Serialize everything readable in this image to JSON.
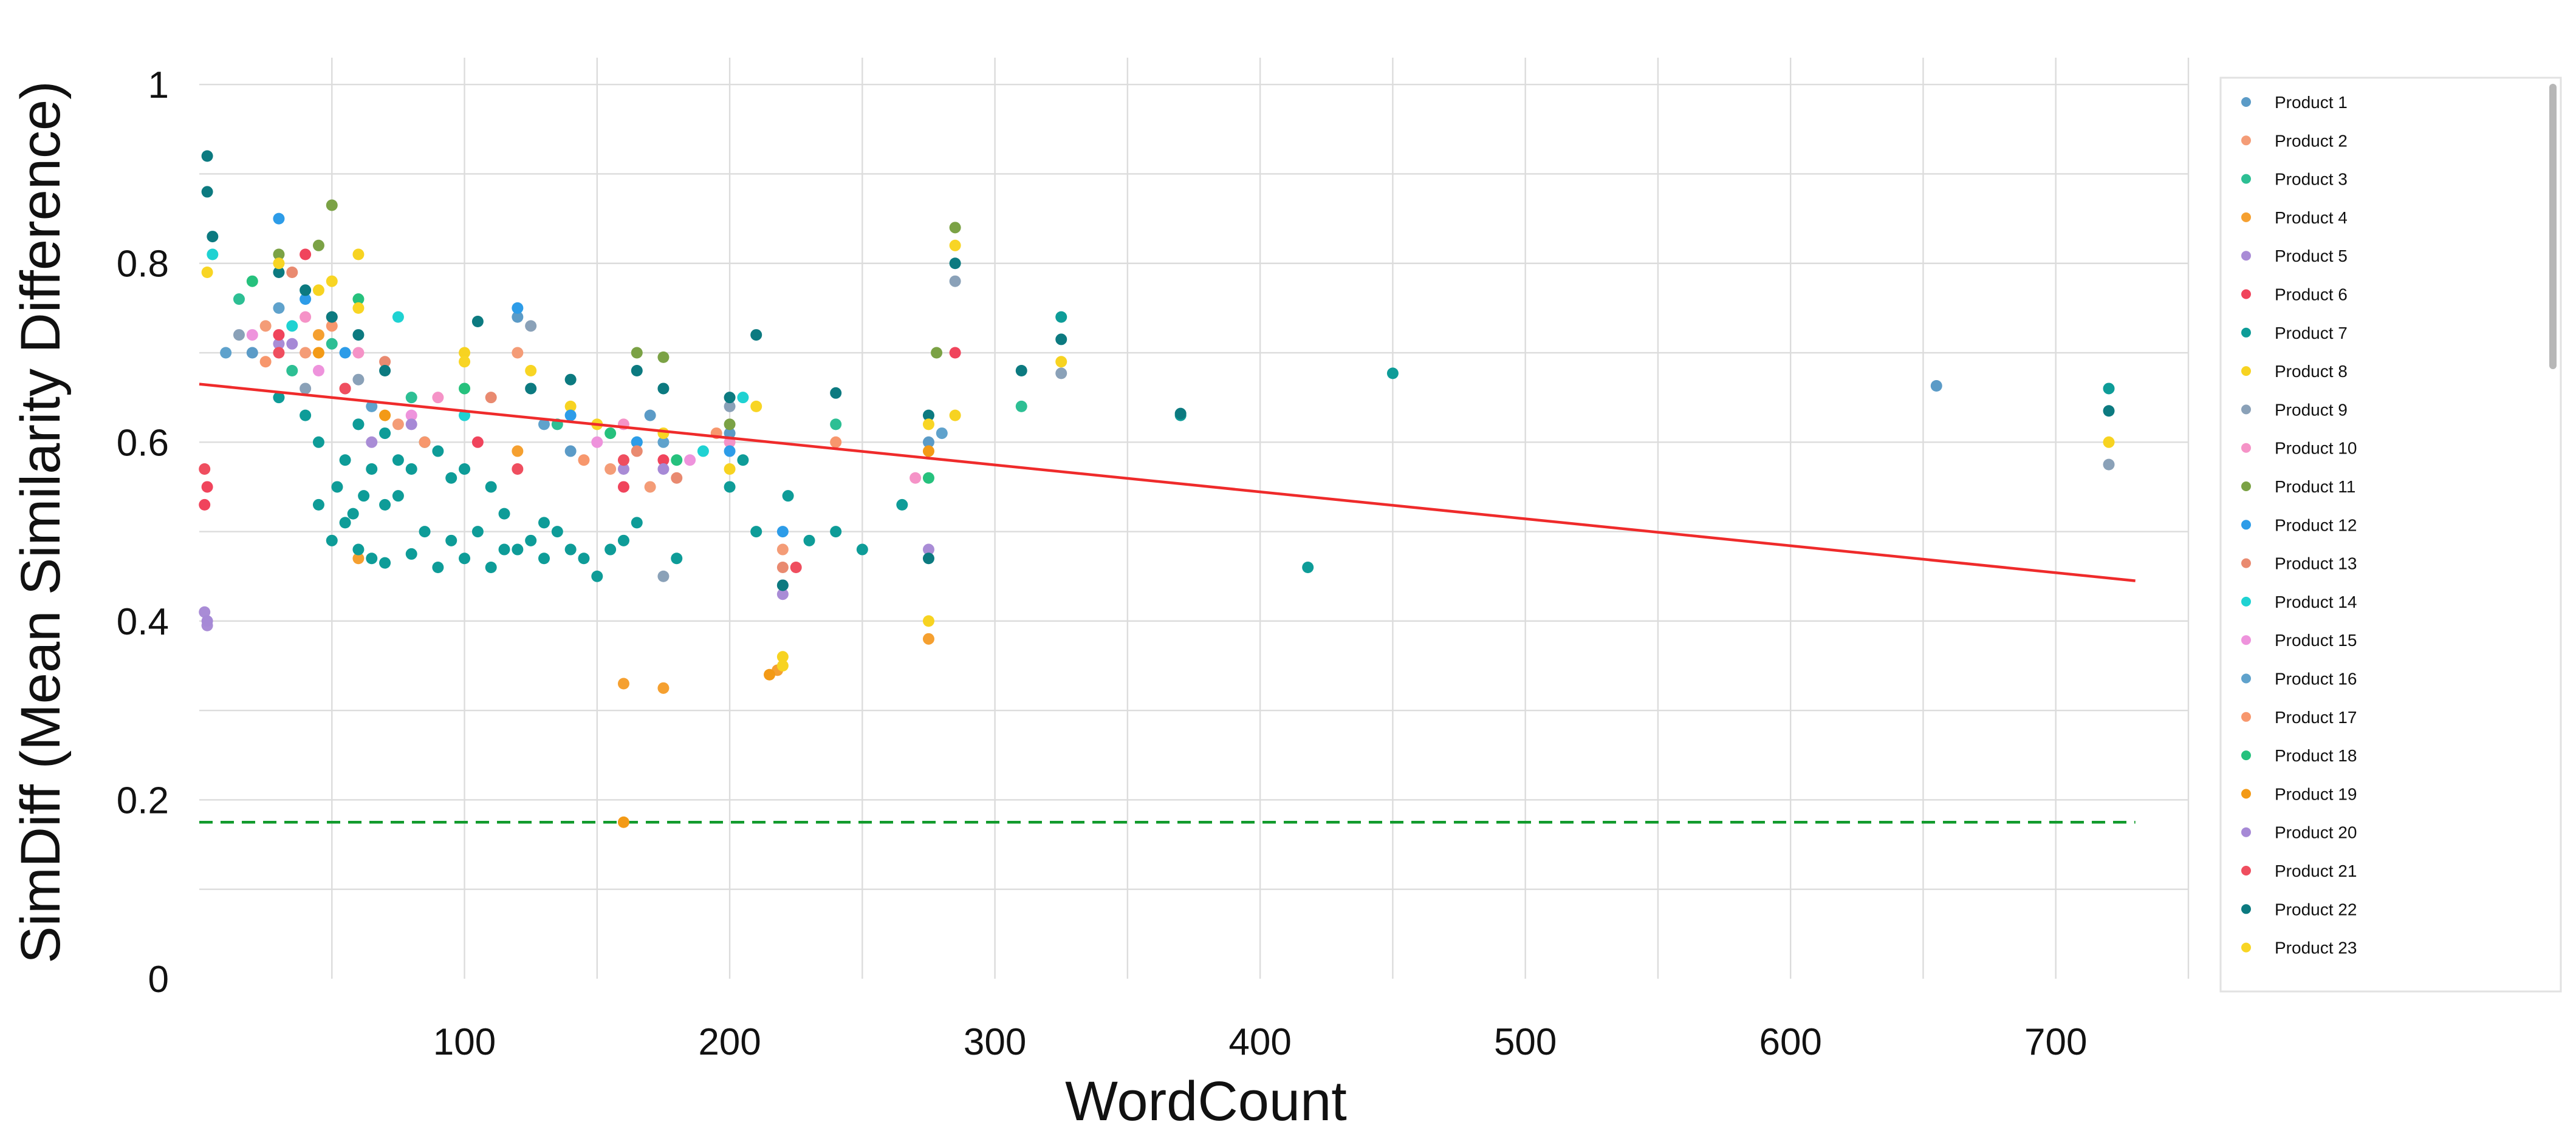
{
  "chart_data": {
    "type": "scatter",
    "title": "",
    "xlabel": "WordCount",
    "ylabel": "SimDiff (Mean Similarity Difference)",
    "xlim": [
      0,
      750
    ],
    "ylim": [
      0,
      1.03
    ],
    "x_ticks": [
      100,
      200,
      300,
      400,
      500,
      600,
      700
    ],
    "y_ticks": [
      {
        "value": 0,
        "label": "0"
      },
      {
        "value": 0.2,
        "label": "0.2"
      },
      {
        "value": 0.4,
        "label": "0.4"
      },
      {
        "value": 0.6,
        "label": "0.6"
      },
      {
        "value": 0.8,
        "label": "0.8"
      },
      {
        "value": 1.0,
        "label": "1"
      }
    ],
    "grid": true,
    "legend_position": "right",
    "trend_line": {
      "color": "#ef2b2b",
      "x": [
        0,
        730
      ],
      "y": [
        0.665,
        0.445
      ]
    },
    "reference_line": {
      "color": "#119a2c",
      "style": "dashed",
      "y": 0.175,
      "x": [
        0,
        730
      ]
    },
    "series": [
      {
        "name": "Product 1",
        "color": "#5b9bc7",
        "points": [
          [
            655,
            0.663
          ],
          [
            20,
            0.7
          ],
          [
            60,
            0.62
          ],
          [
            120,
            0.74
          ],
          [
            140,
            0.59
          ],
          [
            170,
            0.63
          ],
          [
            200,
            0.61
          ],
          [
            275,
            0.6
          ]
        ]
      },
      {
        "name": "Product 2",
        "color": "#f49c77",
        "points": [
          [
            25,
            0.73
          ],
          [
            40,
            0.7
          ],
          [
            55,
            0.66
          ],
          [
            75,
            0.62
          ],
          [
            120,
            0.7
          ],
          [
            155,
            0.57
          ],
          [
            170,
            0.55
          ],
          [
            220,
            0.48
          ]
        ]
      },
      {
        "name": "Product 3",
        "color": "#2dbf94",
        "points": [
          [
            15,
            0.76
          ],
          [
            35,
            0.68
          ],
          [
            50,
            0.71
          ],
          [
            80,
            0.65
          ],
          [
            135,
            0.62
          ],
          [
            165,
            0.6
          ],
          [
            240,
            0.62
          ],
          [
            310,
            0.64
          ]
        ]
      },
      {
        "name": "Product 4",
        "color": "#f5a030",
        "points": [
          [
            160,
            0.33
          ],
          [
            175,
            0.325
          ],
          [
            218,
            0.345
          ],
          [
            275,
            0.38
          ],
          [
            45,
            0.72
          ],
          [
            60,
            0.47
          ],
          [
            120,
            0.59
          ]
        ]
      },
      {
        "name": "Product 5",
        "color": "#a98cd6",
        "points": [
          [
            2,
            0.41
          ],
          [
            3,
            0.395
          ],
          [
            30,
            0.71
          ],
          [
            65,
            0.6
          ],
          [
            160,
            0.57
          ],
          [
            220,
            0.43
          ],
          [
            275,
            0.48
          ]
        ]
      },
      {
        "name": "Product 6",
        "color": "#f0445c",
        "points": [
          [
            3,
            0.55
          ],
          [
            2,
            0.53
          ],
          [
            30,
            0.72
          ],
          [
            40,
            0.81
          ],
          [
            105,
            0.6
          ],
          [
            160,
            0.55
          ],
          [
            175,
            0.58
          ],
          [
            285,
            0.7
          ]
        ]
      },
      {
        "name": "Product 7",
        "color": "#0e9c98",
        "points": [
          [
            50,
            0.49
          ],
          [
            55,
            0.51
          ],
          [
            60,
            0.48
          ],
          [
            65,
            0.47
          ],
          [
            70,
            0.465
          ],
          [
            80,
            0.475
          ],
          [
            90,
            0.46
          ],
          [
            100,
            0.47
          ],
          [
            110,
            0.46
          ],
          [
            120,
            0.48
          ],
          [
            130,
            0.47
          ],
          [
            140,
            0.48
          ],
          [
            150,
            0.45
          ],
          [
            160,
            0.49
          ],
          [
            180,
            0.47
          ],
          [
            200,
            0.55
          ],
          [
            210,
            0.5
          ],
          [
            222,
            0.54
          ],
          [
            230,
            0.49
          ],
          [
            240,
            0.5
          ],
          [
            250,
            0.48
          ],
          [
            265,
            0.53
          ],
          [
            418,
            0.46
          ],
          [
            450,
            0.677
          ],
          [
            720,
            0.66
          ],
          [
            45,
            0.53
          ],
          [
            52,
            0.55
          ],
          [
            58,
            0.52
          ],
          [
            62,
            0.54
          ],
          [
            70,
            0.53
          ],
          [
            75,
            0.54
          ],
          [
            85,
            0.5
          ],
          [
            95,
            0.49
          ],
          [
            105,
            0.5
          ],
          [
            115,
            0.48
          ],
          [
            125,
            0.49
          ],
          [
            135,
            0.5
          ],
          [
            145,
            0.47
          ],
          [
            155,
            0.48
          ],
          [
            165,
            0.51
          ],
          [
            205,
            0.58
          ],
          [
            370,
            0.63
          ],
          [
            325,
            0.74
          ],
          [
            30,
            0.65
          ],
          [
            40,
            0.63
          ],
          [
            45,
            0.6
          ],
          [
            55,
            0.58
          ],
          [
            60,
            0.62
          ],
          [
            65,
            0.57
          ],
          [
            70,
            0.61
          ],
          [
            75,
            0.58
          ],
          [
            80,
            0.57
          ],
          [
            85,
            0.6
          ],
          [
            90,
            0.59
          ],
          [
            95,
            0.56
          ],
          [
            100,
            0.57
          ],
          [
            110,
            0.55
          ],
          [
            115,
            0.52
          ],
          [
            130,
            0.51
          ]
        ]
      },
      {
        "name": "Product 8",
        "color": "#f7d321",
        "points": [
          [
            720,
            0.6
          ],
          [
            275,
            0.4
          ],
          [
            220,
            0.36
          ],
          [
            220,
            0.35
          ],
          [
            45,
            0.77
          ],
          [
            60,
            0.81
          ],
          [
            100,
            0.7
          ],
          [
            140,
            0.64
          ],
          [
            200,
            0.57
          ],
          [
            285,
            0.63
          ],
          [
            325,
            0.69
          ]
        ]
      },
      {
        "name": "Product 9",
        "color": "#8aa1b8",
        "points": [
          [
            720,
            0.575
          ],
          [
            325,
            0.677
          ],
          [
            285,
            0.78
          ],
          [
            125,
            0.73
          ],
          [
            175,
            0.45
          ],
          [
            15,
            0.72
          ],
          [
            40,
            0.66
          ],
          [
            60,
            0.67
          ],
          [
            200,
            0.64
          ]
        ]
      },
      {
        "name": "Product 10",
        "color": "#f593c7",
        "points": [
          [
            40,
            0.74
          ],
          [
            60,
            0.7
          ],
          [
            90,
            0.65
          ],
          [
            160,
            0.62
          ],
          [
            200,
            0.6
          ],
          [
            270,
            0.56
          ]
        ]
      },
      {
        "name": "Product 11",
        "color": "#7ba245",
        "points": [
          [
            50,
            0.865
          ],
          [
            45,
            0.82
          ],
          [
            30,
            0.81
          ],
          [
            165,
            0.7
          ],
          [
            175,
            0.695
          ],
          [
            200,
            0.62
          ],
          [
            278,
            0.7
          ],
          [
            285,
            0.84
          ]
        ]
      },
      {
        "name": "Product 12",
        "color": "#2d9ce8",
        "points": [
          [
            30,
            0.85
          ],
          [
            40,
            0.76
          ],
          [
            55,
            0.7
          ],
          [
            120,
            0.75
          ],
          [
            140,
            0.63
          ],
          [
            165,
            0.6
          ],
          [
            200,
            0.59
          ],
          [
            220,
            0.5
          ]
        ]
      },
      {
        "name": "Product 13",
        "color": "#e98a70",
        "points": [
          [
            35,
            0.79
          ],
          [
            50,
            0.74
          ],
          [
            70,
            0.69
          ],
          [
            110,
            0.65
          ],
          [
            165,
            0.59
          ],
          [
            180,
            0.56
          ],
          [
            220,
            0.46
          ]
        ]
      },
      {
        "name": "Product 14",
        "color": "#1fd2d2",
        "points": [
          [
            5,
            0.81
          ],
          [
            35,
            0.73
          ],
          [
            75,
            0.74
          ],
          [
            100,
            0.63
          ],
          [
            190,
            0.59
          ],
          [
            205,
            0.65
          ]
        ]
      },
      {
        "name": "Product 15",
        "color": "#ee93dc",
        "points": [
          [
            20,
            0.72
          ],
          [
            45,
            0.68
          ],
          [
            80,
            0.63
          ],
          [
            150,
            0.6
          ],
          [
            185,
            0.58
          ]
        ]
      },
      {
        "name": "Product 16",
        "color": "#5fa2cc",
        "points": [
          [
            10,
            0.7
          ],
          [
            30,
            0.75
          ],
          [
            65,
            0.64
          ],
          [
            130,
            0.62
          ],
          [
            175,
            0.6
          ],
          [
            280,
            0.61
          ]
        ]
      },
      {
        "name": "Product 17",
        "color": "#f7976d",
        "points": [
          [
            25,
            0.69
          ],
          [
            50,
            0.73
          ],
          [
            85,
            0.6
          ],
          [
            145,
            0.58
          ],
          [
            195,
            0.61
          ],
          [
            240,
            0.6
          ]
        ]
      },
      {
        "name": "Product 18",
        "color": "#26c17d",
        "points": [
          [
            20,
            0.78
          ],
          [
            60,
            0.76
          ],
          [
            100,
            0.66
          ],
          [
            155,
            0.61
          ],
          [
            180,
            0.58
          ],
          [
            275,
            0.56
          ]
        ]
      },
      {
        "name": "Product 19",
        "color": "#f39a16",
        "points": [
          [
            160,
            0.175
          ],
          [
            45,
            0.7
          ],
          [
            70,
            0.63
          ],
          [
            215,
            0.34
          ],
          [
            275,
            0.59
          ]
        ]
      },
      {
        "name": "Product 20",
        "color": "#a689d6",
        "points": [
          [
            3,
            0.4
          ],
          [
            35,
            0.71
          ],
          [
            80,
            0.62
          ],
          [
            175,
            0.57
          ],
          [
            220,
            0.44
          ]
        ]
      },
      {
        "name": "Product 21",
        "color": "#ef4e5f",
        "points": [
          [
            2,
            0.57
          ],
          [
            30,
            0.7
          ],
          [
            55,
            0.66
          ],
          [
            120,
            0.57
          ],
          [
            160,
            0.58
          ],
          [
            225,
            0.46
          ]
        ]
      },
      {
        "name": "Product 22",
        "color": "#0c7a80",
        "points": [
          [
            720,
            0.635
          ],
          [
            370,
            0.632
          ],
          [
            325,
            0.715
          ],
          [
            310,
            0.68
          ],
          [
            285,
            0.8
          ],
          [
            275,
            0.63
          ],
          [
            240,
            0.655
          ],
          [
            210,
            0.72
          ],
          [
            200,
            0.65
          ],
          [
            175,
            0.66
          ],
          [
            165,
            0.68
          ],
          [
            140,
            0.67
          ],
          [
            125,
            0.66
          ],
          [
            105,
            0.735
          ],
          [
            3,
            0.92
          ],
          [
            3,
            0.88
          ],
          [
            5,
            0.83
          ],
          [
            30,
            0.79
          ],
          [
            40,
            0.77
          ],
          [
            50,
            0.74
          ],
          [
            60,
            0.72
          ],
          [
            70,
            0.68
          ],
          [
            220,
            0.44
          ],
          [
            275,
            0.47
          ]
        ]
      },
      {
        "name": "Product 23",
        "color": "#f8d524",
        "points": [
          [
            3,
            0.79
          ],
          [
            30,
            0.8
          ],
          [
            50,
            0.78
          ],
          [
            60,
            0.75
          ],
          [
            100,
            0.69
          ],
          [
            125,
            0.68
          ],
          [
            150,
            0.62
          ],
          [
            175,
            0.61
          ],
          [
            210,
            0.64
          ],
          [
            275,
            0.62
          ],
          [
            285,
            0.82
          ]
        ]
      }
    ]
  }
}
